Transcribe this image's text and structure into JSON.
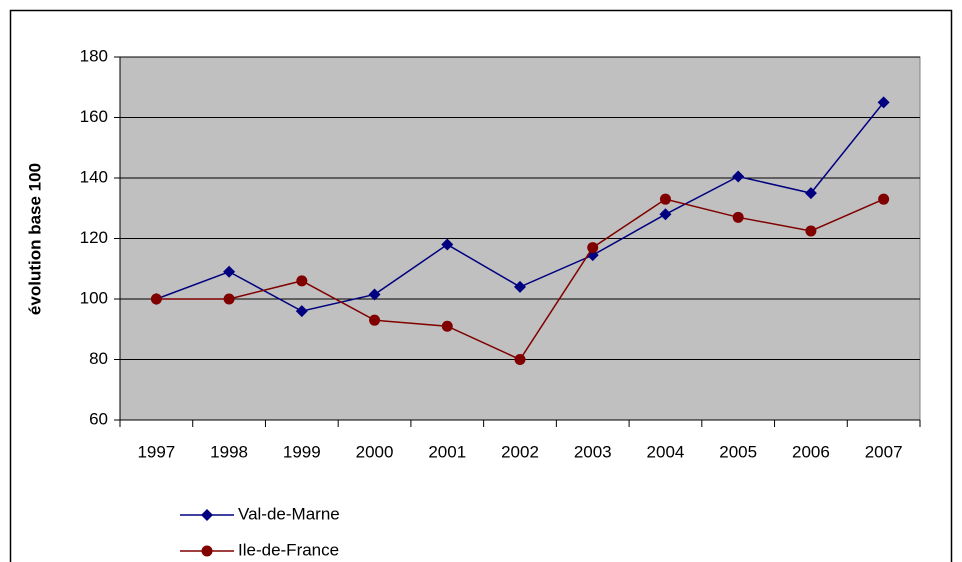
{
  "chart_data": {
    "type": "line",
    "ylabel": "évolution base 100",
    "categories": [
      "1997",
      "1998",
      "1999",
      "2000",
      "2001",
      "2002",
      "2003",
      "2004",
      "2005",
      "2006",
      "2007"
    ],
    "series": [
      {
        "name": "Val-de-Marne",
        "color": "#000080",
        "marker": "diamond",
        "values": [
          100,
          109,
          96,
          101.5,
          118,
          104,
          114.5,
          128,
          140.5,
          135,
          165
        ]
      },
      {
        "name": "Ile-de-France",
        "color": "#800000",
        "marker": "circle",
        "values": [
          100,
          100,
          106,
          93,
          91,
          80,
          117,
          133,
          127,
          122.5,
          133
        ]
      }
    ],
    "ylim": [
      60,
      180
    ],
    "yticks": [
      60,
      80,
      100,
      120,
      140,
      160,
      180
    ],
    "grid": true,
    "legend": "bottom"
  }
}
